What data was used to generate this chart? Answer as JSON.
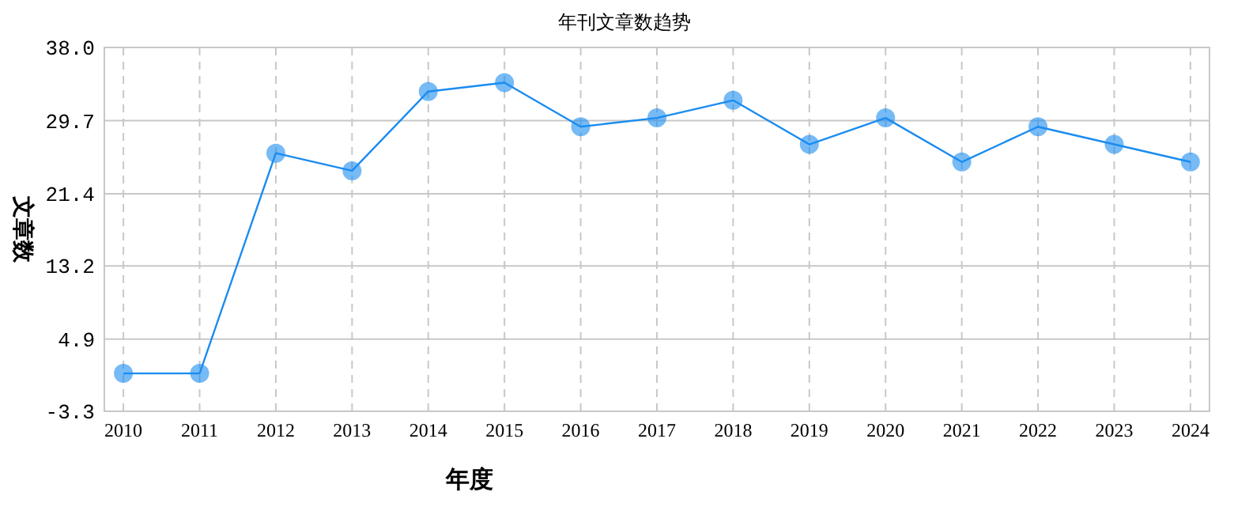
{
  "chart_data": {
    "type": "line",
    "title": "年刊文章数趋势",
    "xlabel": "年度",
    "ylabel": "文章数",
    "categories": [
      "2010",
      "2011",
      "2012",
      "2013",
      "2014",
      "2015",
      "2016",
      "2017",
      "2018",
      "2019",
      "2020",
      "2021",
      "2022",
      "2023",
      "2024"
    ],
    "series": [
      {
        "color": "#1a8cf0",
        "values": [
          1,
          1,
          26,
          24,
          33,
          34,
          29,
          30,
          32,
          27,
          30,
          25,
          29,
          27,
          25
        ]
      }
    ],
    "ylim": [
      -3.3,
      38.0
    ],
    "yticks": [
      {
        "value": -3.3,
        "label": "-3.3"
      },
      {
        "value": 4.9,
        "label": "4.9"
      },
      {
        "value": 13.2,
        "label": "13.2"
      },
      {
        "value": 21.4,
        "label": "21.4"
      },
      {
        "value": 29.7,
        "label": "29.7"
      },
      {
        "value": 38.0,
        "label": "38.0"
      }
    ],
    "grid": true,
    "marker": "circle",
    "line_style": "solid"
  }
}
